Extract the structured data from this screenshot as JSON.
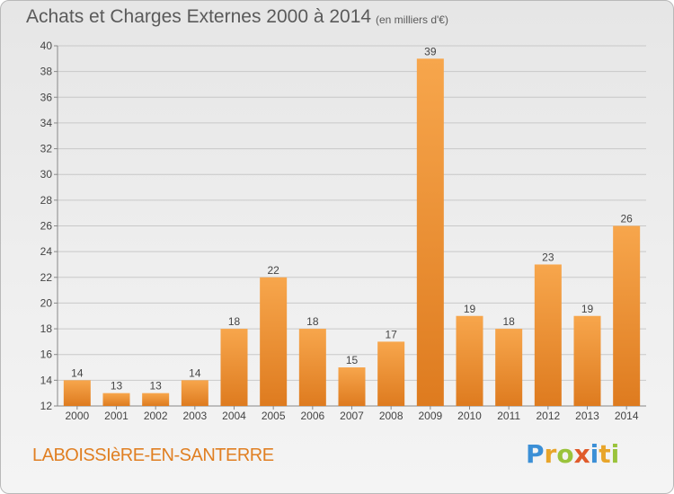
{
  "header": {
    "title": "Achats et Charges Externes 2000 à 2014",
    "subtitle": "(en milliers d'€)"
  },
  "footer": {
    "commune": "LABOISSIèRE-EN-SANTERRE",
    "logo_letters": [
      "P",
      "r",
      "o",
      "x",
      "i",
      "t",
      "i"
    ],
    "logo_colors": [
      "#3b8fd6",
      "#e8a52a",
      "#9ac33b",
      "#e05a2a",
      "#3b8fd6",
      "#e8a52a",
      "#9ac33b"
    ]
  },
  "colors": {
    "bar": "#f39a3e",
    "bar_dark": "#e07f22",
    "grid": "#c8c8c8",
    "axis_text": "#444444"
  },
  "chart_data": {
    "type": "bar",
    "categories": [
      "2000",
      "2001",
      "2002",
      "2003",
      "2004",
      "2005",
      "2006",
      "2007",
      "2008",
      "2009",
      "2010",
      "2011",
      "2012",
      "2013",
      "2014"
    ],
    "values": [
      14,
      13,
      13,
      14,
      18,
      22,
      18,
      15,
      17,
      39,
      19,
      18,
      23,
      19,
      26
    ],
    "ylim": [
      12,
      40
    ],
    "yticks": [
      12,
      14,
      16,
      18,
      20,
      22,
      24,
      26,
      28,
      30,
      32,
      34,
      36,
      38,
      40
    ],
    "grid": true
  }
}
